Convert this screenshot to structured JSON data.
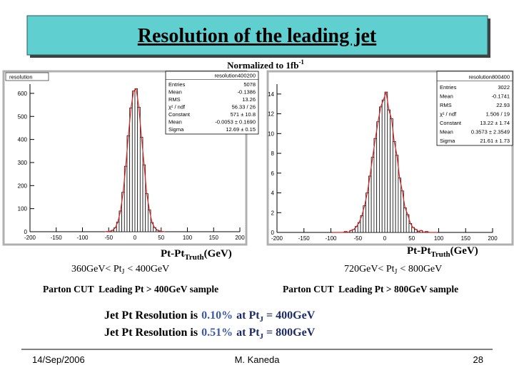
{
  "title": "Resolution of the leading jet",
  "normalization": {
    "text": "Normalized to 1fb",
    "sup": "-1"
  },
  "chart_data": [
    {
      "type": "histogram",
      "label": "resolution",
      "stats_title": "resolution400200",
      "stats": [
        [
          "Entries",
          "5078"
        ],
        [
          "Mean",
          "-0.1386"
        ],
        [
          "RMS",
          "13.26"
        ],
        [
          "χ² / ndf",
          "56.33 / 26"
        ],
        [
          "Constant",
          "571 ± 10.8"
        ],
        [
          "Mean",
          "-0.0053 ± 0.1690"
        ],
        [
          "Sigma",
          "12.69 ± 0.15"
        ]
      ],
      "xlabel": {
        "main": "Pt-Pt",
        "sub": "Truth",
        "rest": "(GeV)"
      },
      "bins": [
        -60,
        -55,
        -50,
        -45,
        -40,
        -35,
        -30,
        -25,
        -20,
        -15,
        -10,
        -5,
        0,
        5,
        10,
        15,
        20,
        25,
        30,
        35,
        40,
        45,
        50,
        55,
        60
      ],
      "values": [
        0,
        1,
        2,
        6,
        17,
        42,
        90,
        171,
        284,
        416,
        537,
        610,
        620,
        540,
        410,
        290,
        165,
        95,
        40,
        18,
        7,
        3,
        1,
        0
      ],
      "color": "#ffffff",
      "fit_color": "#e02020",
      "xlim": [
        -200,
        200
      ],
      "ylim": [
        0,
        640
      ],
      "xticks": [
        -200,
        -150,
        -100,
        -50,
        0,
        50,
        100,
        150,
        200
      ],
      "yticks": [
        0,
        100,
        200,
        300,
        400,
        500,
        600
      ]
    },
    {
      "type": "histogram",
      "stats_title": "resolution800400",
      "stats": [
        [
          "Entries",
          "3022"
        ],
        [
          "Mean",
          "-0.1741"
        ],
        [
          "RMS",
          "22.93"
        ],
        [
          "χ² / ndf",
          "1.506 / 19"
        ],
        [
          "Constant",
          "13.22 ± 1.74"
        ],
        [
          "Mean",
          "0.3573 ± 2.3549"
        ],
        [
          "Sigma",
          "21.61 ± 1.73"
        ]
      ],
      "xlabel": {
        "main": "Pt-Pt",
        "sub": "Truth",
        "rest": "(GeV)"
      },
      "bins": [
        -100,
        -95,
        -90,
        -85,
        -80,
        -75,
        -70,
        -65,
        -60,
        -55,
        -50,
        -45,
        -40,
        -35,
        -30,
        -25,
        -20,
        -15,
        -10,
        -5,
        0,
        5,
        10,
        15,
        20,
        25,
        30,
        35,
        40,
        45,
        50,
        55,
        60,
        65,
        70,
        75,
        80,
        85,
        90,
        95,
        100
      ],
      "values": [
        0,
        0,
        0,
        0,
        0,
        0.1,
        0,
        0.2,
        0.3,
        0.6,
        1.0,
        1.7,
        2.7,
        4.0,
        5.7,
        7.6,
        9.5,
        11.2,
        12.7,
        13.4,
        14.2,
        12.4,
        11.5,
        9.2,
        7.8,
        5.5,
        4.2,
        2.5,
        1.8,
        0.9,
        0.5,
        0.3,
        0.1,
        0.2,
        0,
        0.1,
        0,
        0,
        0,
        0
      ],
      "color": "#ffffff",
      "fit_color": "#e02020",
      "xlim": [
        -200,
        200
      ],
      "ylim": [
        0,
        15
      ],
      "xticks": [
        -200,
        -150,
        -100,
        -50,
        0,
        50,
        100,
        150,
        200
      ],
      "yticks": [
        0,
        2,
        4,
        6,
        8,
        10,
        12,
        14
      ]
    }
  ],
  "cuts": [
    {
      "range": {
        "left": "360GeV< Pt",
        "sub": "J",
        "right": "< 400GeV"
      },
      "sample": "Parton CUT  Leading Pt > 400GeV sample"
    },
    {
      "range": {
        "left": "720GeV< Pt",
        "sub": "J",
        "right": "< 800GeV"
      },
      "sample": "Parton CUT  Leading Pt > 800GeV sample"
    }
  ],
  "results": [
    {
      "text": "Jet Pt Resolution is",
      "value": "0.10%",
      "at": "at Pt",
      "sub": "J",
      "rest": "= 400GeV"
    },
    {
      "text": "Jet Pt Resolution is",
      "value": "0.51%",
      "at": "at Pt",
      "sub": "J",
      "rest": "= 800GeV"
    }
  ],
  "footer": {
    "date": "14/Sep/2006",
    "author": "M. Kaneda",
    "page": "28"
  }
}
